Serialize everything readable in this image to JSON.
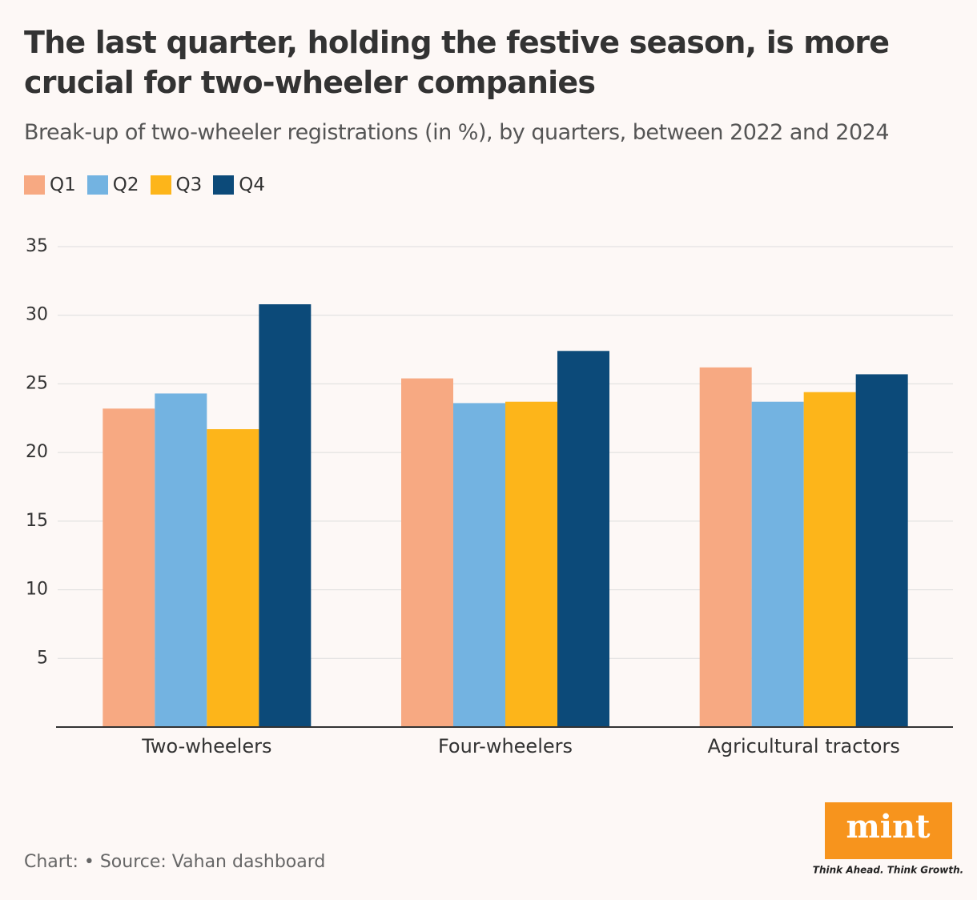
{
  "chart_data": {
    "type": "bar",
    "title": "The last quarter, holding the festive season, is more crucial for two-wheeler companies",
    "subtitle": "Break-up of two-wheeler registrations (in %), by quarters, between 2022 and 2024",
    "categories": [
      "Two-wheelers",
      "Four-wheelers",
      "Agricultural tractors"
    ],
    "series": [
      {
        "name": "Q1",
        "color": "#f7a982",
        "values": [
          23.2,
          25.4,
          26.2
        ]
      },
      {
        "name": "Q2",
        "color": "#73b3e1",
        "values": [
          24.3,
          23.6,
          23.7
        ]
      },
      {
        "name": "Q3",
        "color": "#fdb51a",
        "values": [
          21.7,
          23.7,
          24.4
        ]
      },
      {
        "name": "Q4",
        "color": "#0c4a79",
        "values": [
          30.8,
          27.4,
          25.7
        ]
      }
    ],
    "ylim": [
      0,
      35
    ],
    "yticks": [
      5,
      10,
      15,
      20,
      25,
      30,
      35
    ],
    "grid": true,
    "source": "Chart:  • Source: Vahan dashboard",
    "logo": {
      "text": "mint",
      "tagline": "Think Ahead. Think Growth."
    }
  }
}
